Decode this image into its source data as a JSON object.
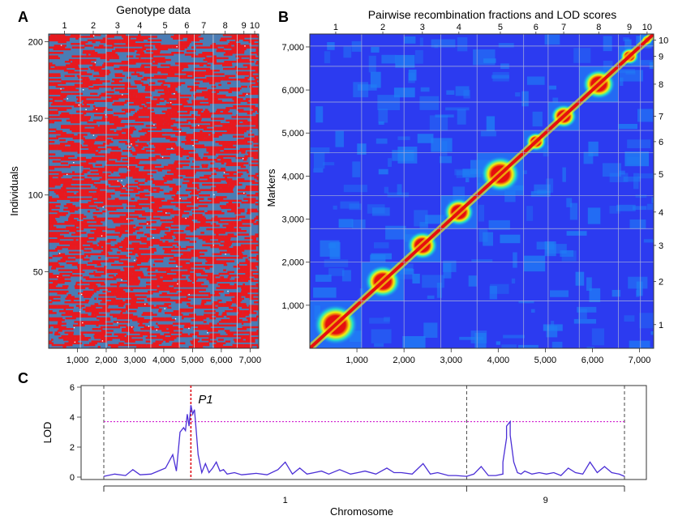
{
  "panel_letters": {
    "a": "A",
    "b": "B",
    "c": "C"
  },
  "chart_data": [
    {
      "type": "heatmap",
      "panel": "A",
      "title": "Genotype data",
      "xlabel": "",
      "ylabel": "Individuals",
      "x_ticks": [
        "1,000",
        "2,000",
        "3,000",
        "4,000",
        "5,000",
        "6,000",
        "7,000"
      ],
      "y_ticks": [
        "50",
        "100",
        "150",
        "200"
      ],
      "top_labels": [
        "1",
        "2",
        "3",
        "4",
        "5",
        "6",
        "7",
        "8",
        "9",
        "10"
      ],
      "xlim": [
        0,
        7300
      ],
      "ylim": [
        0,
        205
      ],
      "chromosome_boundaries": [
        1100,
        2000,
        2780,
        3550,
        4540,
        5060,
        5720,
        6550,
        7020
      ],
      "colors": {
        "genotype_a": "#e8191f",
        "genotype_b": "#4b7cb4",
        "missing": "#ffffff"
      }
    },
    {
      "type": "heatmap",
      "panel": "B",
      "title": "Pairwise recombination fractions and LOD scores",
      "xlabel": "",
      "ylabel": "Markers",
      "x_ticks": [
        "1,000",
        "2,000",
        "3,000",
        "4,000",
        "5,000",
        "6,000",
        "7,000"
      ],
      "y_ticks": [
        "1,000",
        "2,000",
        "3,000",
        "4,000",
        "5,000",
        "6,000",
        "7,000"
      ],
      "top_labels": [
        "1",
        "2",
        "3",
        "4",
        "5",
        "6",
        "7",
        "8",
        "9",
        "10"
      ],
      "right_labels": [
        "1",
        "2",
        "3",
        "4",
        "5",
        "6",
        "7",
        "8",
        "9",
        "10"
      ],
      "xlim": [
        0,
        7300
      ],
      "ylim": [
        0,
        7300
      ],
      "chromosome_boundaries": [
        1100,
        2000,
        2780,
        3550,
        4540,
        5060,
        5720,
        6550,
        7020
      ],
      "colors": {
        "background": "#2c3bf0",
        "low": "#1f7ff5",
        "mid": "#22e0c8",
        "high": "#f5f00a",
        "max": "#e60f0f"
      }
    },
    {
      "type": "line",
      "panel": "C",
      "title": "",
      "xlabel": "Chromosome",
      "ylabel": "LOD",
      "y_ticks": [
        "0",
        "2",
        "4",
        "6"
      ],
      "ylim": [
        0,
        6
      ],
      "x_category_labels": [
        "1",
        "9"
      ],
      "threshold": 3.7,
      "peak_label": "P1",
      "peak_position": 0.24,
      "chromosome_separators": [
        0.0,
        1.0,
        1.435
      ],
      "series": [
        {
          "color": "#4b2fd6",
          "x": [
            0.0,
            0.03,
            0.06,
            0.08,
            0.1,
            0.13,
            0.15,
            0.17,
            0.19,
            0.2,
            0.21,
            0.22,
            0.225,
            0.23,
            0.235,
            0.24,
            0.245,
            0.25,
            0.255,
            0.26,
            0.27,
            0.28,
            0.29,
            0.3,
            0.31,
            0.32,
            0.33,
            0.34,
            0.36,
            0.38,
            0.4,
            0.42,
            0.45,
            0.48,
            0.5,
            0.52,
            0.54,
            0.56,
            0.58,
            0.6,
            0.62,
            0.65,
            0.68,
            0.7,
            0.72,
            0.75,
            0.78,
            0.8,
            0.82,
            0.85,
            0.88,
            0.9,
            0.92,
            0.95,
            0.97,
            1.0,
            1.02,
            1.04,
            1.06,
            1.08,
            1.1,
            1.1,
            1.11,
            1.11,
            1.12,
            1.12,
            1.13,
            1.14,
            1.15,
            1.16,
            1.18,
            1.2,
            1.22,
            1.24,
            1.26,
            1.28,
            1.3,
            1.32,
            1.34,
            1.36,
            1.38,
            1.4,
            1.42,
            1.435
          ],
          "y": [
            0.05,
            0.2,
            0.1,
            0.5,
            0.15,
            0.2,
            0.4,
            0.6,
            1.5,
            0.4,
            3.0,
            3.3,
            3.1,
            4.2,
            3.4,
            4.8,
            4.2,
            4.5,
            3.0,
            1.5,
            0.3,
            0.9,
            0.3,
            0.6,
            1.0,
            0.4,
            0.5,
            0.2,
            0.3,
            0.15,
            0.2,
            0.25,
            0.15,
            0.5,
            1.0,
            0.2,
            0.6,
            0.2,
            0.3,
            0.4,
            0.2,
            0.5,
            0.2,
            0.3,
            0.4,
            0.2,
            0.6,
            0.3,
            0.3,
            0.2,
            0.9,
            0.2,
            0.3,
            0.1,
            0.1,
            0.05,
            0.2,
            0.7,
            0.1,
            0.1,
            0.2,
            1.0,
            2.6,
            3.4,
            3.7,
            2.8,
            1.0,
            0.3,
            0.2,
            0.4,
            0.2,
            0.3,
            0.2,
            0.3,
            0.1,
            0.6,
            0.3,
            0.2,
            1.0,
            0.3,
            0.7,
            0.3,
            0.2,
            0.05
          ]
        }
      ]
    }
  ]
}
